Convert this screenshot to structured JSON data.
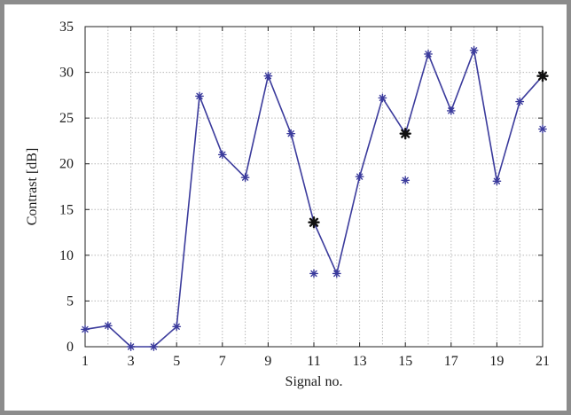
{
  "chart_data": {
    "type": "line",
    "xlabel": "Signal no.",
    "ylabel": "Contrast [dB]",
    "xlim": [
      1,
      21
    ],
    "ylim": [
      0,
      35
    ],
    "x_ticks": [
      1,
      3,
      5,
      7,
      9,
      11,
      13,
      15,
      17,
      19,
      21
    ],
    "y_ticks": [
      0,
      5,
      10,
      15,
      20,
      25,
      30,
      35
    ],
    "grid": true,
    "series": [
      {
        "style": "line-with-asterisk-markers",
        "color": "#3b3b9c",
        "x": [
          1,
          2,
          3,
          4,
          5,
          6,
          7,
          8,
          9,
          10,
          11,
          12,
          13,
          14,
          15,
          16,
          17,
          18,
          19,
          20,
          21
        ],
        "y": [
          1.9,
          2.3,
          0.0,
          0.0,
          2.2,
          27.4,
          21.0,
          18.5,
          29.6,
          23.3,
          13.6,
          8.0,
          18.6,
          27.2,
          23.3,
          32.0,
          25.8,
          32.4,
          18.1,
          26.8,
          29.6
        ]
      },
      {
        "style": "asterisk-markers-only",
        "color": "#3b3b9c",
        "x": [
          11,
          15,
          21
        ],
        "y": [
          8.0,
          18.2,
          23.8
        ]
      },
      {
        "style": "asterisk-markers-only",
        "color": "#111111",
        "x": [
          11,
          15,
          21
        ],
        "y": [
          13.6,
          23.3,
          29.6
        ]
      }
    ]
  }
}
